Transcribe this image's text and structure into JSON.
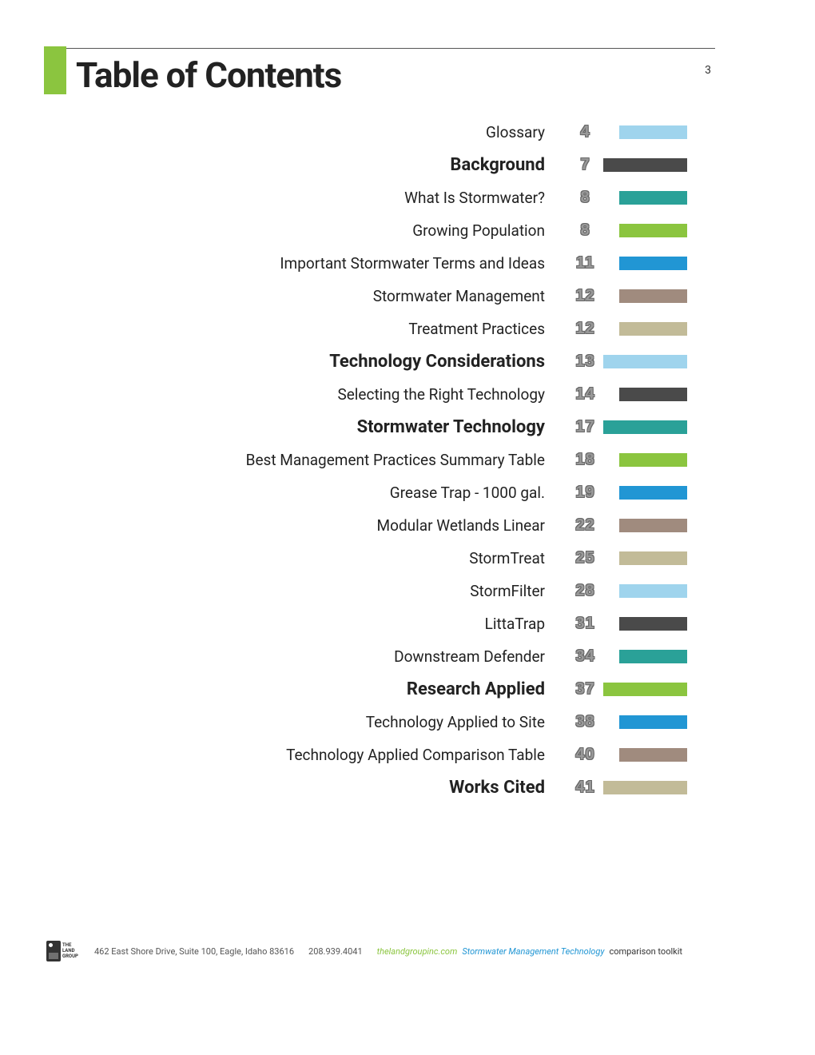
{
  "pageNumber": "3",
  "title": "Table of Contents",
  "accentColor": "#8bc53f",
  "barFullWidth": 105,
  "barShortWidth": 85,
  "entries": [
    {
      "label": "Glossary",
      "page": "4",
      "bold": false,
      "color": "#9fd4ed",
      "full": false
    },
    {
      "label": "Background",
      "page": "7",
      "bold": true,
      "color": "#4a4a4a",
      "full": true
    },
    {
      "label": "What Is Stormwater?",
      "page": "8",
      "bold": false,
      "color": "#2aa198",
      "full": false
    },
    {
      "label": "Growing Population",
      "page": "8",
      "bold": false,
      "color": "#8bc53f",
      "full": false
    },
    {
      "label": "Important Stormwater Terms and Ideas",
      "page": "11",
      "bold": false,
      "color": "#2196d4",
      "full": false
    },
    {
      "label": "Stormwater Management",
      "page": "12",
      "bold": false,
      "color": "#a08b7e",
      "full": false
    },
    {
      "label": "Treatment Practices",
      "page": "12",
      "bold": false,
      "color": "#c2bb98",
      "full": false
    },
    {
      "label": "Technology Considerations",
      "page": "13",
      "bold": true,
      "color": "#9fd4ed",
      "full": true
    },
    {
      "label": "Selecting the Right Technology",
      "page": "14",
      "bold": false,
      "color": "#4a4a4a",
      "full": false
    },
    {
      "label": "Stormwater Technology",
      "page": "17",
      "bold": true,
      "color": "#2aa198",
      "full": true
    },
    {
      "label": "Best Management Practices Summary Table",
      "page": "18",
      "bold": false,
      "color": "#8bc53f",
      "full": false
    },
    {
      "label": "Grease Trap - 1000 gal.",
      "page": "19",
      "bold": false,
      "color": "#2196d4",
      "full": false
    },
    {
      "label": "Modular Wetlands Linear",
      "page": "22",
      "bold": false,
      "color": "#a08b7e",
      "full": false
    },
    {
      "label": "StormTreat",
      "page": "25",
      "bold": false,
      "color": "#c2bb98",
      "full": false
    },
    {
      "label": "StormFilter",
      "page": "28",
      "bold": false,
      "color": "#9fd4ed",
      "full": false
    },
    {
      "label": "LittaTrap",
      "page": "31",
      "bold": false,
      "color": "#4a4a4a",
      "full": false
    },
    {
      "label": "Downstream Defender",
      "page": "34",
      "bold": false,
      "color": "#2aa198",
      "full": false
    },
    {
      "label": "Research Applied",
      "page": "37",
      "bold": true,
      "color": "#8bc53f",
      "full": true
    },
    {
      "label": "Technology Applied to Site",
      "page": "38",
      "bold": false,
      "color": "#2196d4",
      "full": false
    },
    {
      "label": "Technology Applied Comparison Table",
      "page": "40",
      "bold": false,
      "color": "#a08b7e",
      "full": false
    },
    {
      "label": "Works Cited",
      "page": "41",
      "bold": true,
      "color": "#c2bb98",
      "full": true
    }
  ],
  "footer": {
    "logoLines": "THE\nLAND\nGROUP",
    "address": "462 East Shore Drive, Suite 100, Eagle, Idaho 83616",
    "phone": "208.939.4041",
    "url": "thelandgroupinc.com",
    "blue": "Stormwater Management Technology",
    "tool": "comparison toolkit"
  }
}
